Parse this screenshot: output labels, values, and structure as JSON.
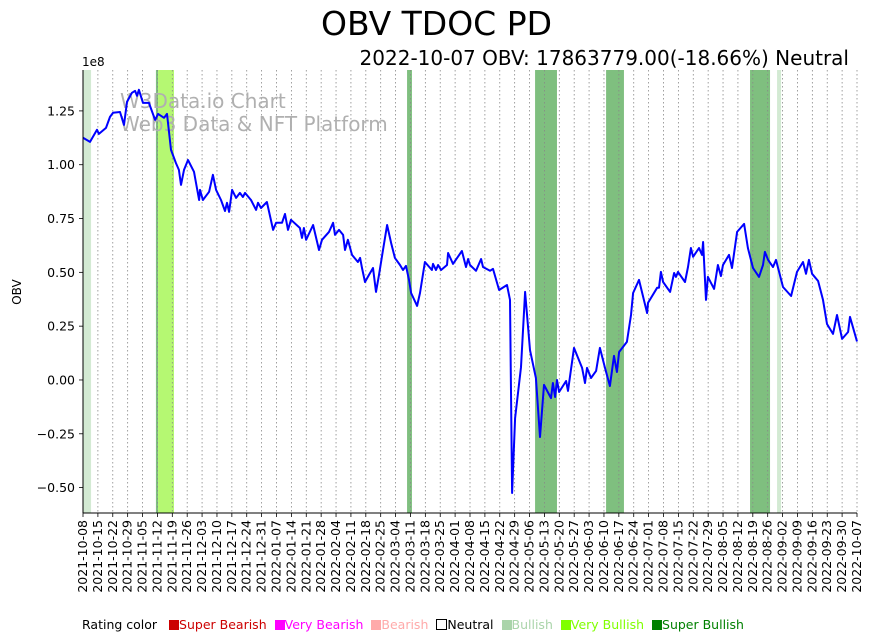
{
  "title": "OBV TDOC PD",
  "subtitle": "2022-10-07 OBV: 17863779.00(-18.66%) Neutral",
  "watermark": [
    "W3Data.io Chart",
    "Web3 Data & NFT Platform"
  ],
  "legend": {
    "label": "Rating color",
    "items": [
      {
        "label": "Super Bearish",
        "color": "#cc0000"
      },
      {
        "label": "Very Bearish",
        "color": "#ff00ff"
      },
      {
        "label": "Bearish",
        "color": "#ffaaaa"
      },
      {
        "label": "Neutral",
        "color": "#ffffff"
      },
      {
        "label": "Bullish",
        "color": "#aad4aa"
      },
      {
        "label": "Very Bullish",
        "color": "#80ff00"
      },
      {
        "label": "Super Bullish",
        "color": "#008000"
      }
    ]
  },
  "chart_data": {
    "type": "line",
    "title": "OBV TDOC PD",
    "ylabel": "OBV",
    "y_multiplier": "1e8",
    "ylim": [
      -0.618,
      1.44
    ],
    "xlim_days": [
      0,
      364
    ],
    "yticks": [
      -0.5,
      -0.25,
      0.0,
      0.25,
      0.5,
      0.75,
      1.0,
      1.25
    ],
    "ytick_labels": [
      "−0.50",
      "−0.25",
      "0.00",
      "0.25",
      "0.50",
      "0.75",
      "1.00",
      "1.25"
    ],
    "xtick_labels": [
      "2021-10-08",
      "2021-10-15",
      "2021-10-22",
      "2021-10-29",
      "2021-11-05",
      "2021-11-12",
      "2021-11-19",
      "2021-11-26",
      "2021-12-03",
      "2021-12-10",
      "2021-12-17",
      "2021-12-24",
      "2021-12-31",
      "2022-01-07",
      "2022-01-14",
      "2022-01-21",
      "2022-01-28",
      "2022-02-04",
      "2022-02-11",
      "2022-02-18",
      "2022-02-25",
      "2022-03-04",
      "2022-03-11",
      "2022-03-18",
      "2022-03-25",
      "2022-04-01",
      "2022-04-08",
      "2022-04-15",
      "2022-04-22",
      "2022-04-29",
      "2022-05-06",
      "2022-05-13",
      "2022-05-20",
      "2022-05-27",
      "2022-06-03",
      "2022-06-10",
      "2022-06-17",
      "2022-06-24",
      "2022-07-01",
      "2022-07-08",
      "2022-07-15",
      "2022-07-22",
      "2022-07-29",
      "2022-08-05",
      "2022-08-12",
      "2022-08-19",
      "2022-08-26",
      "2022-09-02",
      "2022-09-09",
      "2022-09-16",
      "2022-09-23",
      "2022-09-30",
      "2022-10-07"
    ],
    "series": [
      {
        "name": "OBV",
        "color": "#0000ff",
        "points": [
          [
            0,
            1.125
          ],
          [
            3.3,
            1.106
          ],
          [
            6.6,
            1.162
          ],
          [
            7.5,
            1.143
          ],
          [
            10.8,
            1.171
          ],
          [
            12.7,
            1.222
          ],
          [
            14.1,
            1.241
          ],
          [
            17.4,
            1.245
          ],
          [
            19.3,
            1.185
          ],
          [
            20.7,
            1.292
          ],
          [
            23,
            1.334
          ],
          [
            24.5,
            1.343
          ],
          [
            25.4,
            1.32
          ],
          [
            26.3,
            1.348
          ],
          [
            28.2,
            1.287
          ],
          [
            31,
            1.287
          ],
          [
            33.9,
            1.208
          ],
          [
            35.3,
            1.236
          ],
          [
            38.1,
            1.218
          ],
          [
            39.5,
            1.236
          ],
          [
            41.4,
            1.069
          ],
          [
            43.7,
            1.008
          ],
          [
            45.1,
            0.976
          ],
          [
            46.1,
            0.906
          ],
          [
            47.5,
            0.976
          ],
          [
            49.4,
            1.022
          ],
          [
            52.2,
            0.967
          ],
          [
            54.6,
            0.836
          ],
          [
            55,
            0.883
          ],
          [
            56.4,
            0.836
          ],
          [
            59.3,
            0.874
          ],
          [
            61.1,
            0.953
          ],
          [
            62.6,
            0.883
          ],
          [
            64.9,
            0.836
          ],
          [
            66.8,
            0.785
          ],
          [
            67.7,
            0.823
          ],
          [
            68.7,
            0.781
          ],
          [
            70.1,
            0.883
          ],
          [
            72,
            0.846
          ],
          [
            73.8,
            0.869
          ],
          [
            75.2,
            0.85
          ],
          [
            76.2,
            0.869
          ],
          [
            79,
            0.836
          ],
          [
            81.4,
            0.79
          ],
          [
            82.3,
            0.823
          ],
          [
            83.7,
            0.799
          ],
          [
            86.5,
            0.827
          ],
          [
            89.4,
            0.697
          ],
          [
            90.8,
            0.73
          ],
          [
            93.6,
            0.73
          ],
          [
            95,
            0.771
          ],
          [
            96.4,
            0.697
          ],
          [
            97.8,
            0.744
          ],
          [
            102,
            0.706
          ],
          [
            103,
            0.66
          ],
          [
            103.9,
            0.706
          ],
          [
            104.9,
            0.651
          ],
          [
            108.2,
            0.72
          ],
          [
            111,
            0.604
          ],
          [
            112.4,
            0.651
          ],
          [
            115.7,
            0.688
          ],
          [
            117.6,
            0.73
          ],
          [
            118.5,
            0.674
          ],
          [
            120.4,
            0.697
          ],
          [
            122.3,
            0.674
          ],
          [
            123.2,
            0.604
          ],
          [
            124.6,
            0.651
          ],
          [
            126.5,
            0.581
          ],
          [
            129.3,
            0.548
          ],
          [
            130.3,
            0.567
          ],
          [
            131.2,
            0.52
          ],
          [
            132.6,
            0.455
          ],
          [
            134.5,
            0.488
          ],
          [
            136.4,
            0.52
          ],
          [
            137.8,
            0.409
          ],
          [
            139.2,
            0.488
          ],
          [
            141.1,
            0.604
          ],
          [
            143,
            0.72
          ],
          [
            144.9,
            0.637
          ],
          [
            146.7,
            0.567
          ],
          [
            149.1,
            0.534
          ],
          [
            150.5,
            0.511
          ],
          [
            151.9,
            0.53
          ],
          [
            153.3,
            0.465
          ],
          [
            154.3,
            0.404
          ],
          [
            157.1,
            0.344
          ],
          [
            158.5,
            0.404
          ],
          [
            160.8,
            0.548
          ],
          [
            164.1,
            0.511
          ],
          [
            164.6,
            0.539
          ],
          [
            166,
            0.511
          ],
          [
            167,
            0.534
          ],
          [
            168.4,
            0.511
          ],
          [
            171.2,
            0.534
          ],
          [
            171.7,
            0.59
          ],
          [
            174,
            0.539
          ],
          [
            178.2,
            0.599
          ],
          [
            180.1,
            0.525
          ],
          [
            181.1,
            0.562
          ],
          [
            182,
            0.534
          ],
          [
            184.8,
            0.507
          ],
          [
            187.2,
            0.562
          ],
          [
            188.1,
            0.525
          ],
          [
            191.4,
            0.507
          ],
          [
            192.8,
            0.516
          ],
          [
            195.7,
            0.418
          ],
          [
            199.4,
            0.441
          ],
          [
            200.8,
            0.372
          ],
          [
            201.8,
            -0.525
          ],
          [
            203.2,
            -0.177
          ],
          [
            206,
            0.06
          ],
          [
            207.9,
            0.409
          ],
          [
            210.2,
            0.139
          ],
          [
            213,
            0.009
          ],
          [
            214.9,
            -0.265
          ],
          [
            216.8,
            -0.023
          ],
          [
            220.1,
            -0.084
          ],
          [
            221,
            -0.014
          ],
          [
            222,
            -0.079
          ],
          [
            222.9,
            0.0
          ],
          [
            223.9,
            -0.056
          ],
          [
            227.2,
            -0.005
          ],
          [
            228.1,
            -0.051
          ],
          [
            230.9,
            0.149
          ],
          [
            234.7,
            0.056
          ],
          [
            236.1,
            -0.014
          ],
          [
            237,
            0.056
          ],
          [
            238.9,
            0.009
          ],
          [
            241.3,
            0.042
          ],
          [
            243.1,
            0.149
          ],
          [
            245.5,
            0.056
          ],
          [
            247.8,
            -0.028
          ],
          [
            249.7,
            0.112
          ],
          [
            251.1,
            0.037
          ],
          [
            252.1,
            0.13
          ],
          [
            255.8,
            0.177
          ],
          [
            257.7,
            0.302
          ],
          [
            258.7,
            0.404
          ],
          [
            261.5,
            0.465
          ],
          [
            265.3,
            0.311
          ],
          [
            265.7,
            0.358
          ],
          [
            270,
            0.428
          ],
          [
            270.9,
            0.428
          ],
          [
            271.8,
            0.502
          ],
          [
            272.8,
            0.455
          ],
          [
            276.1,
            0.409
          ],
          [
            278,
            0.497
          ],
          [
            278.9,
            0.479
          ],
          [
            279.8,
            0.502
          ],
          [
            283.1,
            0.455
          ],
          [
            284.5,
            0.525
          ],
          [
            285.9,
            0.613
          ],
          [
            286.9,
            0.572
          ],
          [
            289.7,
            0.613
          ],
          [
            291.1,
            0.581
          ],
          [
            291.6,
            0.641
          ],
          [
            293,
            0.372
          ],
          [
            293.9,
            0.479
          ],
          [
            296.8,
            0.423
          ],
          [
            298.6,
            0.534
          ],
          [
            300,
            0.483
          ],
          [
            301,
            0.534
          ],
          [
            303.8,
            0.581
          ],
          [
            305.2,
            0.52
          ],
          [
            307.6,
            0.688
          ],
          [
            310.9,
            0.725
          ],
          [
            312.7,
            0.613
          ],
          [
            315.1,
            0.52
          ],
          [
            317.9,
            0.479
          ],
          [
            319.8,
            0.534
          ],
          [
            320.7,
            0.595
          ],
          [
            322.2,
            0.558
          ],
          [
            324.5,
            0.525
          ],
          [
            325.9,
            0.558
          ],
          [
            329.2,
            0.432
          ],
          [
            333,
            0.39
          ],
          [
            335.8,
            0.502
          ],
          [
            338.6,
            0.548
          ],
          [
            340,
            0.493
          ],
          [
            341.4,
            0.558
          ],
          [
            342.9,
            0.493
          ],
          [
            345.7,
            0.46
          ],
          [
            348,
            0.372
          ],
          [
            349.9,
            0.26
          ],
          [
            352.7,
            0.214
          ],
          [
            354.6,
            0.302
          ],
          [
            357,
            0.191
          ],
          [
            359.8,
            0.223
          ],
          [
            360.7,
            0.293
          ],
          [
            364,
            0.1786
          ]
        ]
      }
    ],
    "rating_bands": [
      {
        "start_day": 0,
        "end_day": 3.8,
        "rating": "Bullish",
        "color": "#d3ead3"
      },
      {
        "start_day": 34.3,
        "end_day": 35.3,
        "rating": "Super Bullish",
        "color": "#7fbf7f"
      },
      {
        "start_day": 35.3,
        "end_day": 42.8,
        "rating": "Very Bullish",
        "color": "#b5f872"
      },
      {
        "start_day": 152.4,
        "end_day": 154.7,
        "rating": "Super Bullish",
        "color": "#7fbf7f"
      },
      {
        "start_day": 212.6,
        "end_day": 222.9,
        "rating": "Super Bullish",
        "color": "#7fbf7f"
      },
      {
        "start_day": 246,
        "end_day": 254.4,
        "rating": "Super Bullish",
        "color": "#7fbf7f"
      },
      {
        "start_day": 313.7,
        "end_day": 323.1,
        "rating": "Super Bullish",
        "color": "#7fbf7f"
      },
      {
        "start_day": 326.4,
        "end_day": 328.3,
        "rating": "Bullish",
        "color": "#d3ead3"
      }
    ],
    "grid": "vertical-dotted",
    "legend_position": "bottom"
  }
}
